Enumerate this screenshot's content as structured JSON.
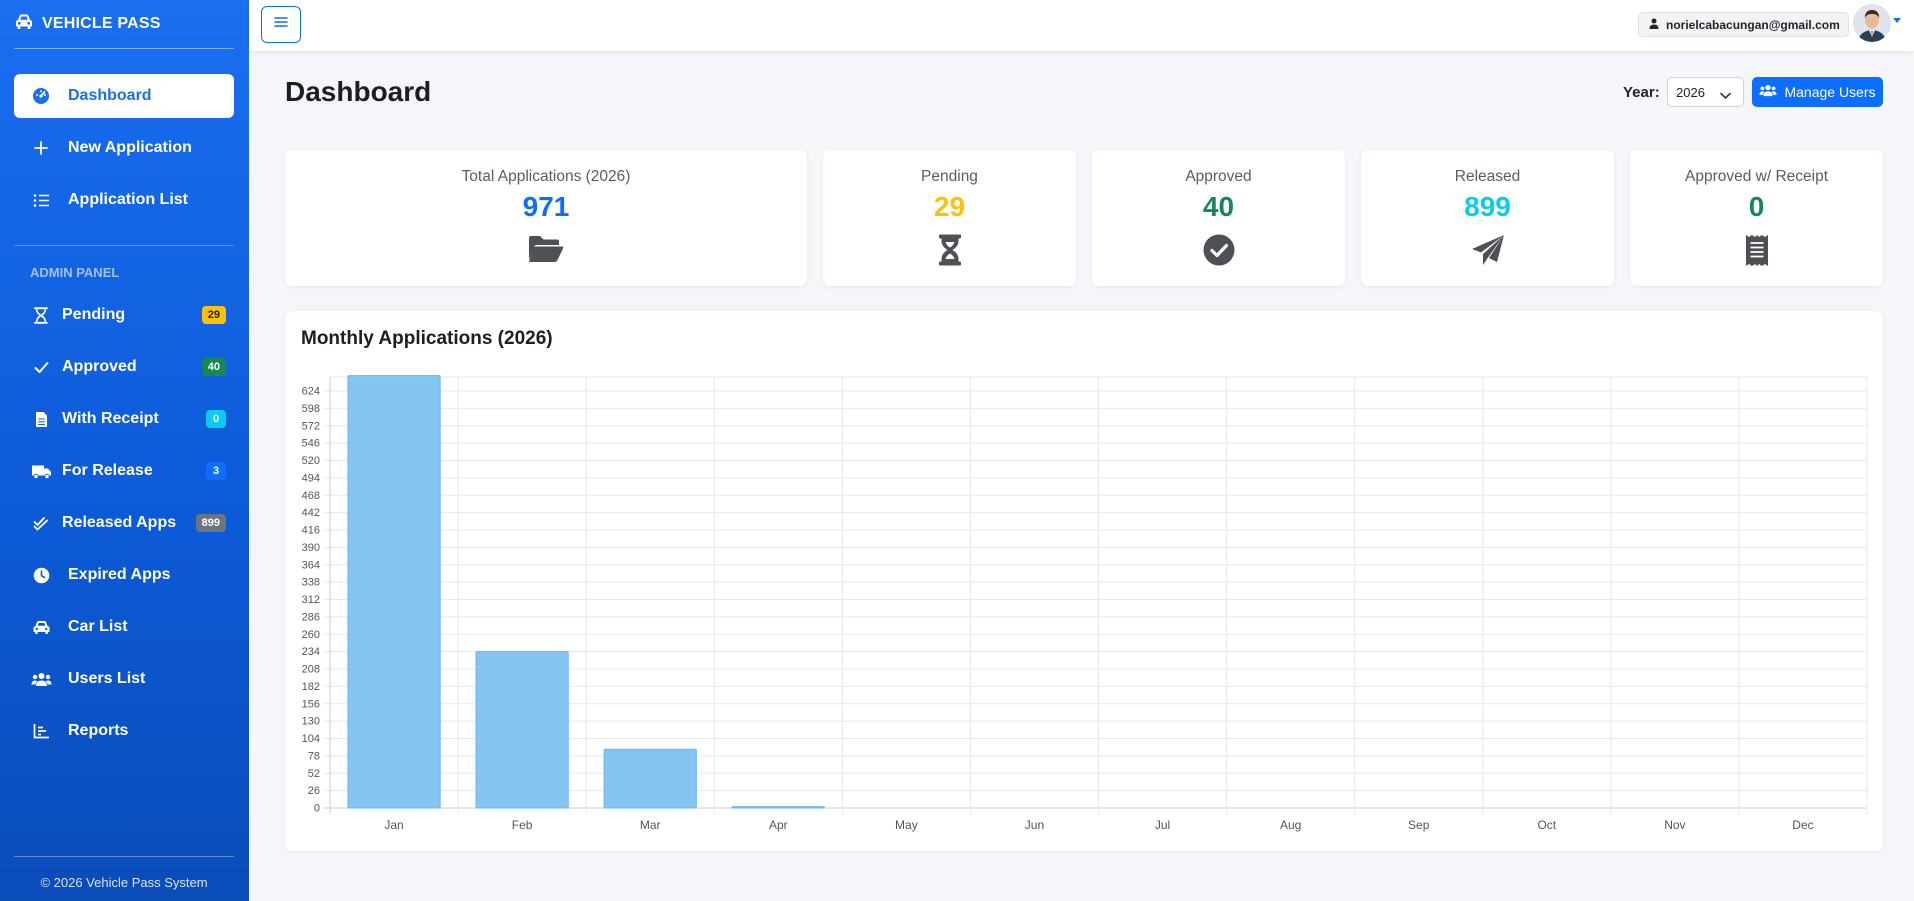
{
  "brand": {
    "name": "VEHICLE PASS"
  },
  "nav": {
    "items": [
      {
        "label": "Dashboard",
        "icon": "gauge-icon",
        "active": true
      },
      {
        "label": "New Application",
        "icon": "plus-icon"
      },
      {
        "label": "Application List",
        "icon": "list-icon"
      }
    ]
  },
  "admin": {
    "title": "ADMIN PANEL",
    "items": [
      {
        "label": "Pending",
        "badge": "29",
        "badge_color": "#ffc107",
        "badge_text": "#212529",
        "icon": "hourglass-icon"
      },
      {
        "label": "Approved",
        "badge": "40",
        "badge_color": "#198754",
        "badge_text": "#ffffff",
        "icon": "check-icon"
      },
      {
        "label": "With Receipt",
        "badge": "0",
        "badge_color": "#0dcaf0",
        "badge_text": "#ffffff",
        "icon": "receipt-file-icon"
      },
      {
        "label": "For Release",
        "badge": "3",
        "badge_color": "#0d6efd",
        "badge_text": "#ffffff",
        "icon": "truck-icon"
      },
      {
        "label": "Released Apps",
        "badge": "899",
        "badge_color": "#6c757d",
        "badge_text": "#ffffff",
        "icon": "double-check-icon"
      },
      {
        "label": "Expired Apps",
        "icon": "clock-icon"
      },
      {
        "label": "Car List",
        "icon": "car-icon"
      },
      {
        "label": "Users List",
        "icon": "users-icon"
      },
      {
        "label": "Reports",
        "icon": "bar-chart-icon"
      }
    ]
  },
  "footer": {
    "text": "© 2026 Vehicle Pass System"
  },
  "topbar": {
    "user_email": "norielcabacungan@gmail.com"
  },
  "header": {
    "title": "Dashboard",
    "year_label": "Year:",
    "year_value": "2026",
    "manage_users_label": "Manage Users"
  },
  "stats": {
    "total": {
      "label": "Total Applications (2026)",
      "value": "971",
      "color": "#0d6efd",
      "icon": "folder-open-icon"
    },
    "pending": {
      "label": "Pending",
      "value": "29",
      "color": "#ffc107",
      "icon": "hourglass-icon"
    },
    "approved": {
      "label": "Approved",
      "value": "40",
      "color": "#198754",
      "icon": "check-circle-icon"
    },
    "released": {
      "label": "Released",
      "value": "899",
      "color": "#0dcaf0",
      "icon": "paper-plane-icon"
    },
    "receipt": {
      "label": "Approved w/ Receipt",
      "value": "0",
      "color": "#198754",
      "icon": "receipt-icon"
    }
  },
  "chart": {
    "title": "Monthly Applications (2026)"
  },
  "chart_data": {
    "type": "bar",
    "title": "Monthly Applications (2026)",
    "categories": [
      "Jan",
      "Feb",
      "Mar",
      "Apr",
      "May",
      "Jun",
      "Jul",
      "Aug",
      "Sep",
      "Oct",
      "Nov",
      "Dec"
    ],
    "values": [
      647,
      234,
      88,
      2,
      0,
      0,
      0,
      0,
      0,
      0,
      0,
      0
    ],
    "ylim": [
      0,
      624
    ],
    "ytick_step": 26,
    "grid": true,
    "bar_color": "#85c5f3",
    "bar_border": "#6cb4ee"
  }
}
